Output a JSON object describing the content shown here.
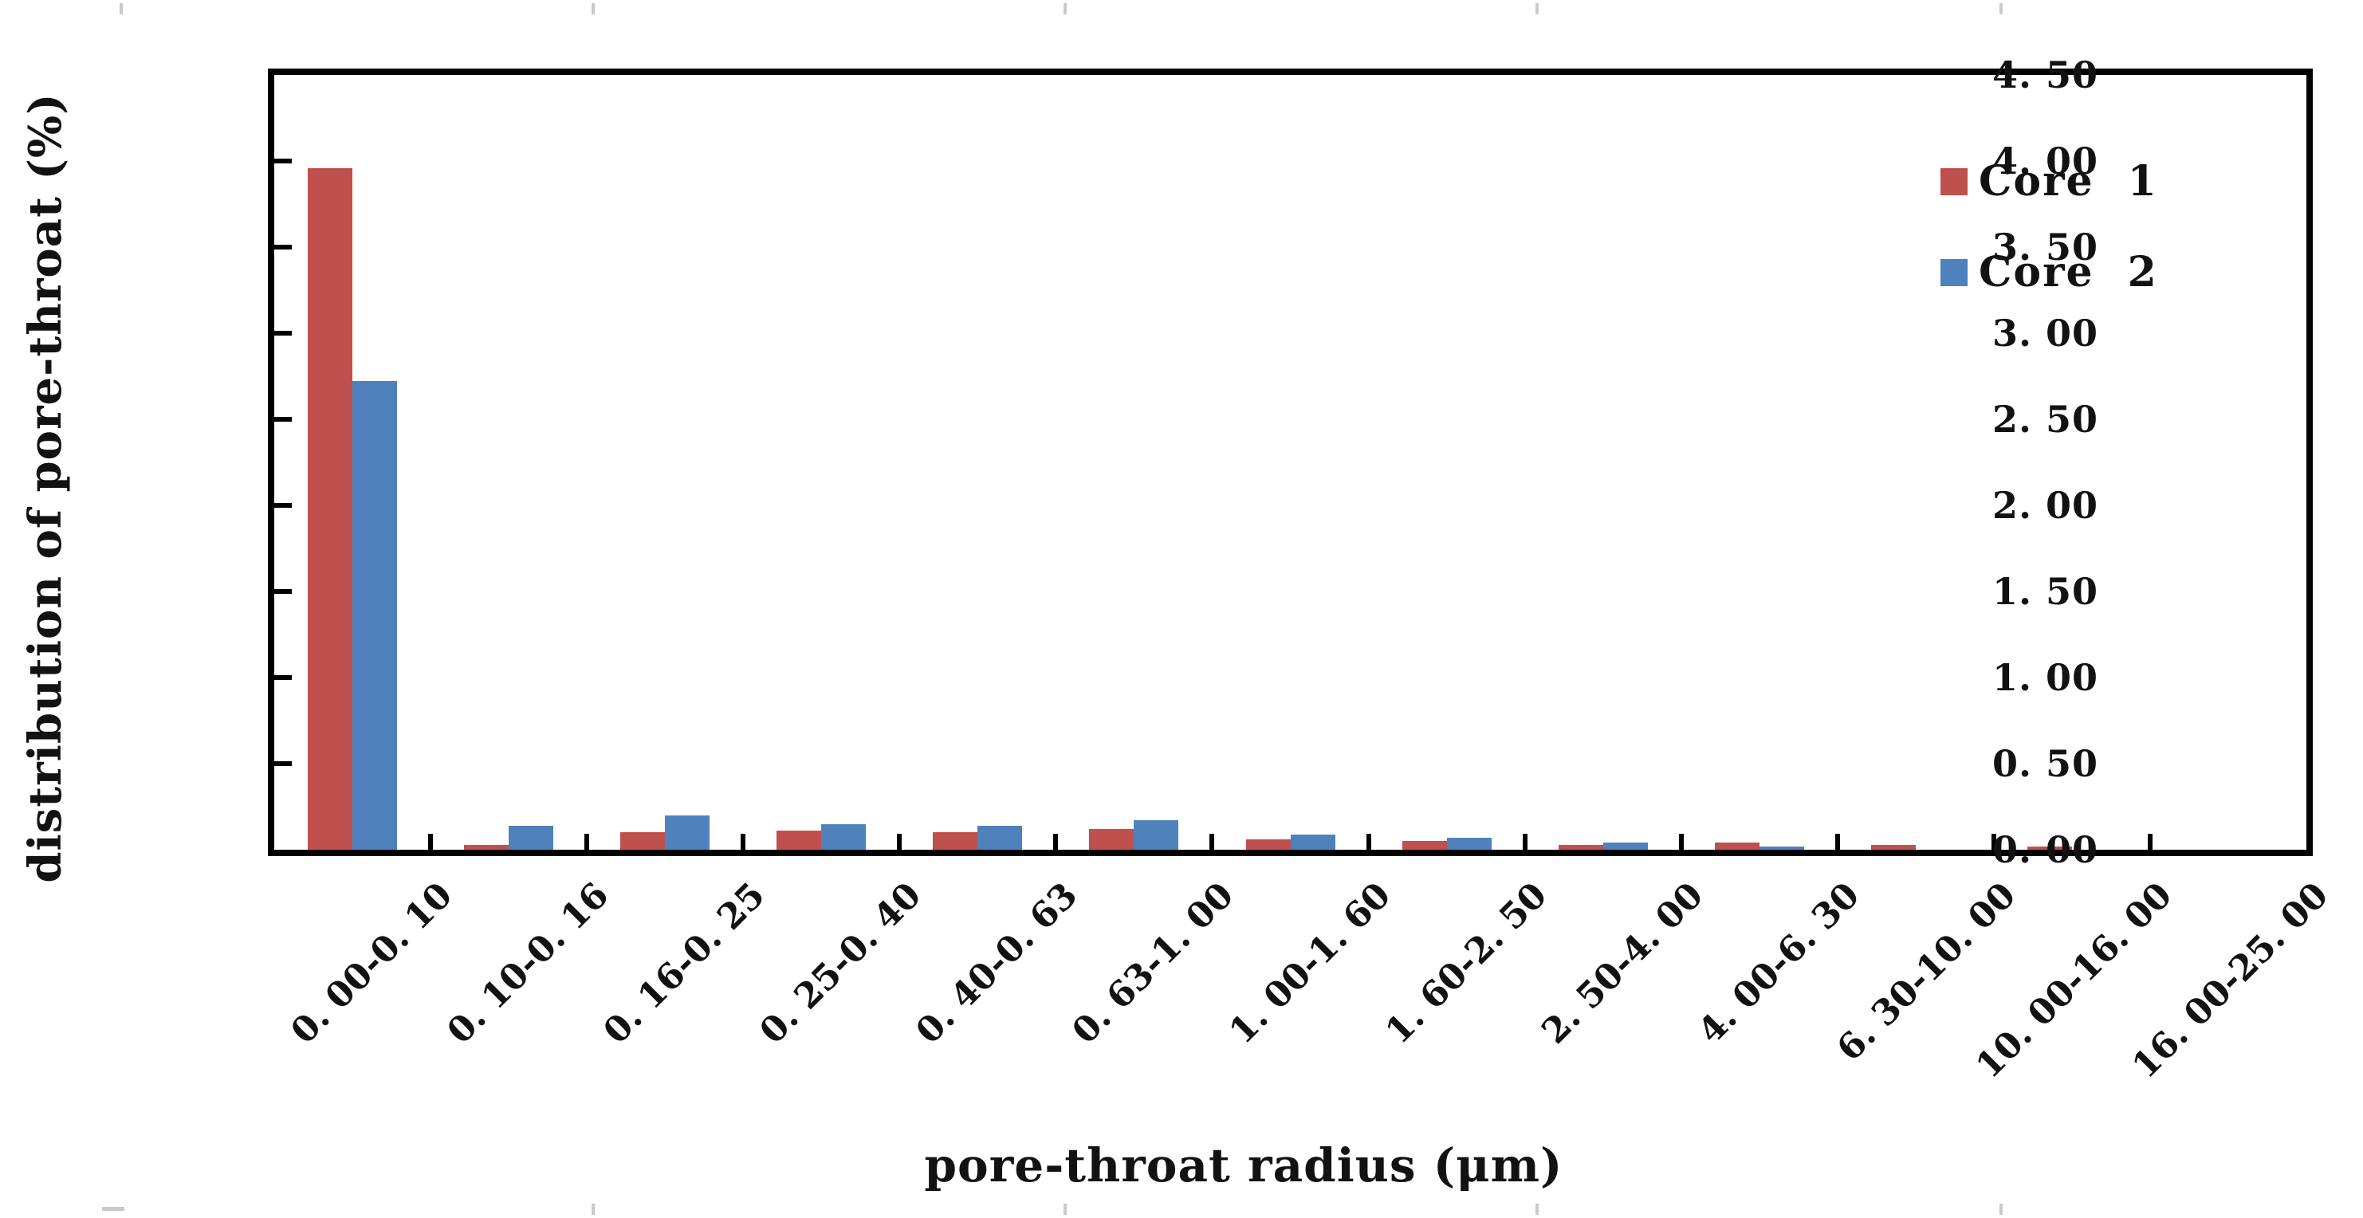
{
  "figure": {
    "background": "#ffffff",
    "frame_color": "#000000",
    "text_color": "#121212"
  },
  "chart_data": {
    "type": "bar",
    "title": "",
    "xlabel": "pore-throat radius (μm)",
    "ylabel": "distribution of pore-throat (%)",
    "categories": [
      "0.00-0.10",
      "0.10-0.16",
      "0.16-0.25",
      "0.25-0.40",
      "0.40-0.63",
      "0.63-1.00",
      "1.00-1.60",
      "1.60-2.50",
      "2.50-4.00",
      "4.00-6.30",
      "6.30-10.00",
      "10.00-16.00",
      "16.00-25.00"
    ],
    "xtick_labels_display": [
      "0. 00-0. 10",
      "0. 10-0. 16",
      "0. 16-0. 25",
      "0. 25-0. 40",
      "0. 40-0. 63",
      "0. 63-1. 00",
      "1. 00-1. 60",
      "1. 60-2. 50",
      "2. 50-4. 00",
      "4. 00-6. 30",
      "6. 30-10. 00",
      "10. 00-16. 00",
      "16. 00-25. 00"
    ],
    "series": [
      {
        "name": "Core 1",
        "color": "#C0504D",
        "values": [
          3.96,
          0.03,
          0.1,
          0.11,
          0.1,
          0.12,
          0.06,
          0.05,
          0.03,
          0.04,
          0.03,
          0.02,
          0.0
        ]
      },
      {
        "name": "Core 2",
        "color": "#4F81BD",
        "values": [
          2.72,
          0.14,
          0.2,
          0.15,
          0.14,
          0.17,
          0.09,
          0.07,
          0.04,
          0.02,
          0.0,
          0.0,
          0.0
        ]
      }
    ],
    "ylim": [
      0,
      4.5
    ],
    "ytick_step": 0.5,
    "ytick_labels_display": [
      "0. 00",
      "0. 50",
      "1. 00",
      "1. 50",
      "2. 00",
      "2. 50",
      "3. 00",
      "3. 50",
      "4. 00",
      "4. 50"
    ],
    "legend_position": "top-right",
    "grid": false
  }
}
